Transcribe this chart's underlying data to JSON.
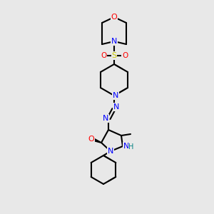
{
  "bg_color": "#e8e8e8",
  "bond_color": "#000000",
  "bond_lw": 1.5,
  "atom_colors": {
    "N": "#0000ff",
    "O": "#ff0000",
    "S": "#cccc00",
    "H": "#008080",
    "C": "#000000"
  }
}
